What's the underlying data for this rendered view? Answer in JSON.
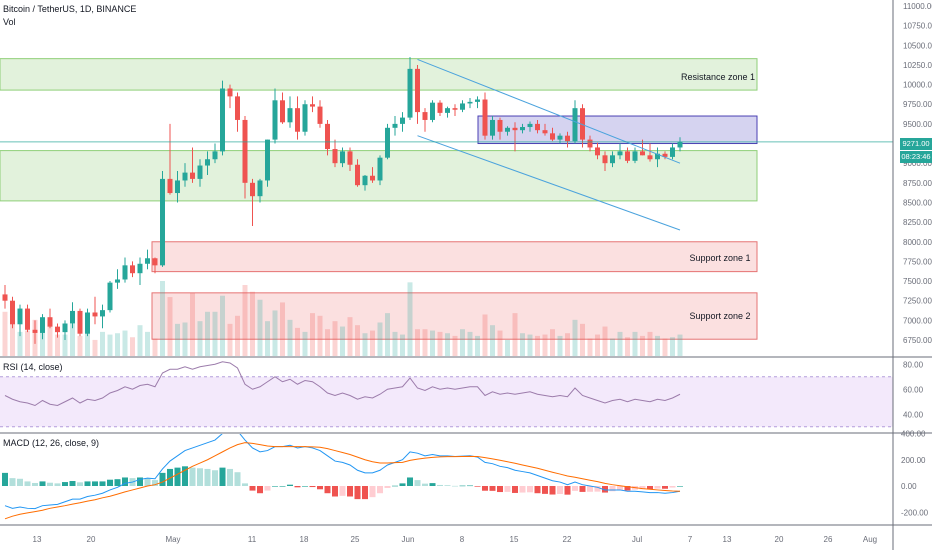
{
  "header": {
    "symbol": "Bitcoin / TetherUS, 1D, BINANCE",
    "volume_label": "Vol",
    "rsi_label": "RSI (14, close)",
    "macd_label": "MACD (12, 26, close, 9)"
  },
  "price_tags": {
    "last_price": "9271.00",
    "countdown": "08:23:46"
  },
  "zones": {
    "resistance_1": "Resistance zone 1",
    "support_1": "Support zone 1",
    "support_2": "Support zone 2"
  },
  "colors": {
    "up": "#26a69a",
    "down": "#ef5350",
    "resistance_fill": "#e2f2dc",
    "resistance_stroke": "#8fcf78",
    "support_fill": "#fbe0e0",
    "support_stroke": "#e57373",
    "range_fill": "#d5d3f0",
    "range_stroke": "#4a3fb3",
    "channel": "#4ba3dd",
    "rsi_line": "#9c7cab",
    "rsi_band": "#f3e9fb",
    "macd_line": "#2196f3",
    "signal_line": "#ff6d00"
  },
  "chart_data": [
    {
      "type": "candlestick",
      "title": "Bitcoin / TetherUS, 1D, BINANCE",
      "x_tick_labels": [
        "13",
        "20",
        "May",
        "11",
        "18",
        "25",
        "Jun",
        "8",
        "15",
        "22",
        "Jul",
        "7",
        "13",
        "20",
        "26",
        "Aug"
      ],
      "y_tick_labels": [
        "11000.00",
        "10750.00",
        "10500.00",
        "10250.00",
        "10000.00",
        "9750.00",
        "9500.00",
        "9250.00",
        "9000.00",
        "8750.00",
        "8500.00",
        "8250.00",
        "8000.00",
        "7750.00",
        "7500.00",
        "7250.00",
        "7000.00",
        "6750.00"
      ],
      "ylim": [
        6600,
        11100
      ],
      "candles": [
        [
          7330,
          7450,
          7150,
          7250
        ],
        [
          7250,
          7300,
          6900,
          6950
        ],
        [
          6950,
          7200,
          6800,
          7150
        ],
        [
          7150,
          7200,
          6850,
          6880
        ],
        [
          6880,
          7000,
          6700,
          6840
        ],
        [
          6840,
          7080,
          6760,
          7040
        ],
        [
          7040,
          7150,
          6900,
          6920
        ],
        [
          6920,
          6960,
          6780,
          6850
        ],
        [
          6850,
          7000,
          6750,
          6960
        ],
        [
          6960,
          7230,
          6900,
          7120
        ],
        [
          7120,
          7150,
          6800,
          6830
        ],
        [
          6830,
          7150,
          6800,
          7100
        ],
        [
          7100,
          7300,
          6950,
          7050
        ],
        [
          7050,
          7200,
          6900,
          7130
        ],
        [
          7130,
          7500,
          7100,
          7480
        ],
        [
          7480,
          7650,
          7400,
          7520
        ],
        [
          7520,
          7800,
          7480,
          7700
        ],
        [
          7700,
          7750,
          7550,
          7600
        ],
        [
          7600,
          7800,
          7450,
          7720
        ],
        [
          7720,
          7900,
          7650,
          7790
        ],
        [
          7790,
          7800,
          7600,
          7700
        ],
        [
          7700,
          8900,
          7680,
          8800
        ],
        [
          8800,
          9500,
          8600,
          8620
        ],
        [
          8620,
          8900,
          8500,
          8780
        ],
        [
          8780,
          9000,
          8700,
          8880
        ],
        [
          8880,
          9200,
          8750,
          8800
        ],
        [
          8800,
          9050,
          8700,
          8970
        ],
        [
          8970,
          9150,
          8850,
          9050
        ],
        [
          9050,
          9250,
          9000,
          9150
        ],
        [
          9150,
          10050,
          9100,
          9950
        ],
        [
          9950,
          10000,
          9700,
          9850
        ],
        [
          9850,
          9900,
          9400,
          9550
        ],
        [
          9550,
          9600,
          8550,
          8750
        ],
        [
          8750,
          8800,
          8200,
          8580
        ],
        [
          8580,
          8800,
          8500,
          8780
        ],
        [
          8780,
          9300,
          8700,
          9300
        ],
        [
          9300,
          9950,
          9250,
          9800
        ],
        [
          9800,
          9900,
          9500,
          9520
        ],
        [
          9520,
          9850,
          9450,
          9700
        ],
        [
          9700,
          9850,
          9300,
          9400
        ],
        [
          9400,
          9800,
          9350,
          9750
        ],
        [
          9750,
          9850,
          9650,
          9720
        ],
        [
          9720,
          9800,
          9450,
          9500
        ],
        [
          9500,
          9550,
          9100,
          9180
        ],
        [
          9180,
          9300,
          8950,
          9000
        ],
        [
          9000,
          9200,
          8950,
          9150
        ],
        [
          9150,
          9200,
          8900,
          8980
        ],
        [
          8980,
          9050,
          8700,
          8720
        ],
        [
          8720,
          8850,
          8650,
          8840
        ],
        [
          8840,
          8950,
          8750,
          8780
        ],
        [
          8780,
          9100,
          8720,
          9070
        ],
        [
          9070,
          9500,
          9050,
          9450
        ],
        [
          9450,
          9600,
          9350,
          9500
        ],
        [
          9500,
          9650,
          9400,
          9580
        ],
        [
          9580,
          10350,
          9550,
          10200
        ],
        [
          10200,
          10250,
          9500,
          9650
        ],
        [
          9650,
          9700,
          9400,
          9550
        ],
        [
          9550,
          9800,
          9520,
          9770
        ],
        [
          9770,
          9800,
          9600,
          9640
        ],
        [
          9640,
          9720,
          9580,
          9700
        ],
        [
          9700,
          9750,
          9600,
          9680
        ],
        [
          9680,
          9800,
          9650,
          9760
        ],
        [
          9760,
          9830,
          9700,
          9780
        ],
        [
          9780,
          9850,
          9700,
          9810
        ],
        [
          9810,
          9900,
          9300,
          9350
        ],
        [
          9350,
          9600,
          9300,
          9550
        ],
        [
          9550,
          9580,
          9300,
          9400
        ],
        [
          9400,
          9470,
          9350,
          9450
        ],
        [
          9450,
          9520,
          9150,
          9420
        ],
        [
          9420,
          9500,
          9380,
          9460
        ],
        [
          9460,
          9530,
          9400,
          9500
        ],
        [
          9500,
          9550,
          9380,
          9420
        ],
        [
          9420,
          9500,
          9350,
          9380
        ],
        [
          9380,
          9450,
          9280,
          9300
        ],
        [
          9300,
          9380,
          9250,
          9350
        ],
        [
          9350,
          9400,
          9200,
          9280
        ],
        [
          9280,
          9800,
          9250,
          9700
        ],
        [
          9700,
          9750,
          9200,
          9300
        ],
        [
          9300,
          9350,
          9150,
          9200
        ],
        [
          9200,
          9260,
          9050,
          9100
        ],
        [
          9100,
          9150,
          8900,
          9000
        ],
        [
          9000,
          9150,
          8950,
          9100
        ],
        [
          9100,
          9250,
          9050,
          9150
        ],
        [
          9150,
          9200,
          9000,
          9030
        ],
        [
          9030,
          9200,
          9000,
          9150
        ],
        [
          9150,
          9300,
          9100,
          9100
        ],
        [
          9100,
          9250,
          9020,
          9050
        ],
        [
          9050,
          9200,
          8950,
          9120
        ],
        [
          9120,
          9150,
          9050,
          9080
        ],
        [
          9080,
          9250,
          9050,
          9200
        ],
        [
          9200,
          9330,
          9150,
          9271
        ]
      ],
      "volume_values": [
        3.3,
        2.6,
        1.8,
        1.9,
        2.7,
        1.9,
        2.3,
        1.6,
        1.6,
        2.4,
        1.5,
        2.0,
        1.2,
        1.8,
        1.6,
        1.7,
        1.9,
        1.4,
        2.3,
        1.8,
        1.3,
        5.6,
        4.4,
        2.4,
        2.5,
        4.7,
        2.6,
        3.3,
        3.3,
        4.5,
        2.4,
        3.0,
        5.3,
        4.8,
        4.2,
        2.6,
        3.4,
        4.0,
        2.7,
        2.1,
        1.8,
        3.2,
        3.0,
        2.0,
        2.6,
        2.2,
        2.9,
        2.3,
        1.7,
        1.9,
        2.5,
        3.2,
        1.8,
        1.6,
        5.5,
        2.0,
        2.0,
        1.9,
        1.8,
        1.7,
        1.5,
        2.0,
        1.8,
        1.5,
        3.1,
        2.3,
        1.9,
        1.2,
        3.2,
        1.7,
        1.6,
        1.5,
        1.6,
        2.0,
        1.5,
        1.7,
        2.7,
        2.4,
        1.3,
        1.6,
        2.2,
        1.3,
        1.8,
        1.4,
        1.8,
        1.5,
        1.8,
        1.5,
        1.3,
        1.4,
        1.6
      ],
      "resistance_zone_1": [
        9930,
        10330
      ],
      "support_zone_1": [
        7620,
        8000
      ],
      "support_zone_2": [
        6760,
        7350
      ],
      "green_zone_lower": [
        8520,
        9160
      ],
      "consolidation_range": [
        9250,
        9600
      ],
      "channel_top": [
        [
          55,
          10320
        ],
        [
          90,
          9000
        ]
      ],
      "channel_bottom": [
        [
          55,
          9350
        ],
        [
          90,
          8150
        ]
      ]
    },
    {
      "type": "line",
      "title": "RSI (14, close)",
      "y_tick_labels": [
        "80.00",
        "60.00",
        "40.00"
      ],
      "ylim": [
        25,
        85
      ],
      "band": [
        30,
        70
      ],
      "series": [
        {
          "values": [
            55,
            52,
            50,
            49,
            47,
            51,
            48,
            47,
            50,
            53,
            49,
            52,
            51,
            53,
            57,
            59,
            62,
            60,
            63,
            64,
            62,
            73,
            76,
            76,
            78,
            76,
            78,
            79,
            80,
            82,
            81,
            77,
            64,
            60,
            62,
            66,
            70,
            66,
            68,
            64,
            67,
            66,
            62,
            57,
            55,
            57,
            55,
            52,
            54,
            53,
            56,
            60,
            61,
            62,
            69,
            61,
            59,
            62,
            60,
            61,
            60,
            61,
            62,
            62,
            55,
            58,
            56,
            57,
            56,
            57,
            58,
            56,
            55,
            54,
            55,
            54,
            61,
            55,
            53,
            51,
            49,
            51,
            52,
            50,
            52,
            51,
            50,
            52,
            51,
            53,
            56
          ]
        }
      ]
    },
    {
      "type": "line",
      "title": "MACD (12, 26, close, 9)",
      "y_tick_labels": [
        "400.00",
        "200.00",
        "0.00",
        "-200.00"
      ],
      "ylim": [
        -300,
        410
      ],
      "series": [
        {
          "values": [
            -150,
            -170,
            -160,
            -170,
            -172,
            -150,
            -145,
            -140,
            -120,
            -100,
            -100,
            -80,
            -70,
            -55,
            -30,
            -10,
            20,
            30,
            50,
            60,
            55,
            130,
            190,
            230,
            270,
            290,
            310,
            330,
            350,
            400,
            420,
            420,
            350,
            290,
            260,
            270,
            300,
            300,
            310,
            290,
            300,
            290,
            270,
            230,
            190,
            180,
            160,
            120,
            100,
            100,
            120,
            160,
            180,
            200,
            260,
            250,
            230,
            240,
            230,
            230,
            225,
            228,
            230,
            220,
            180,
            170,
            150,
            140,
            120,
            110,
            100,
            80,
            60,
            40,
            30,
            10,
            30,
            10,
            0,
            -10,
            -30,
            -30,
            -30,
            -40,
            -40,
            -45,
            -50,
            -50,
            -55,
            -50,
            -40
          ]
        },
        {
          "values": [
            -250,
            -230,
            -215,
            -205,
            -195,
            -185,
            -170,
            -160,
            -150,
            -138,
            -128,
            -115,
            -105,
            -90,
            -78,
            -62,
            -45,
            -30,
            -15,
            0,
            10,
            30,
            60,
            90,
            120,
            150,
            175,
            200,
            230,
            260,
            290,
            315,
            330,
            325,
            315,
            305,
            300,
            300,
            300,
            300,
            300,
            298,
            295,
            285,
            270,
            255,
            240,
            220,
            200,
            185,
            175,
            175,
            178,
            180,
            195,
            205,
            212,
            218,
            222,
            224,
            224,
            225,
            226,
            225,
            216,
            207,
            196,
            185,
            173,
            160,
            148,
            135,
            120,
            105,
            91,
            76,
            67,
            55,
            44,
            33,
            20,
            10,
            2,
            -6,
            -12,
            -20,
            -25,
            -30,
            -34,
            -38,
            -40
          ]
        }
      ],
      "histogram": [
        100,
        60,
        55,
        35,
        23,
        35,
        25,
        20,
        30,
        38,
        28,
        35,
        35,
        35,
        48,
        52,
        65,
        60,
        65,
        60,
        45,
        100,
        130,
        140,
        150,
        140,
        135,
        130,
        120,
        140,
        130,
        105,
        20,
        -35,
        -55,
        -35,
        0,
        0,
        10,
        -10,
        0,
        -8,
        -25,
        -55,
        -80,
        -75,
        -80,
        -100,
        -100,
        -85,
        -55,
        -15,
        2,
        20,
        65,
        45,
        18,
        22,
        8,
        6,
        1,
        3,
        4,
        -5,
        -36,
        -37,
        -46,
        -45,
        -53,
        -50,
        -48,
        -55,
        -60,
        -65,
        -61,
        -66,
        -37,
        -45,
        -44,
        -43,
        -50,
        -40,
        -32,
        -34,
        -28,
        -25,
        -25,
        -20,
        -21,
        -12,
        0
      ]
    }
  ]
}
